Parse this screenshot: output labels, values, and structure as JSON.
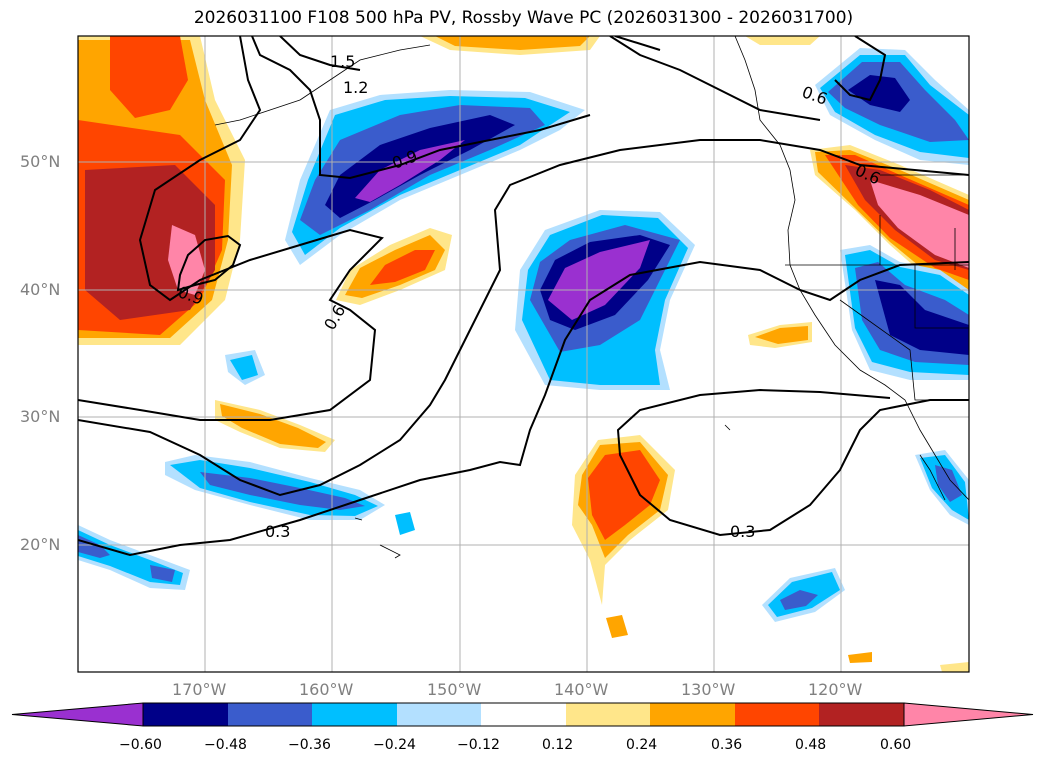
{
  "title": "2026031100 F108 500 hPa PV, Rossby Wave PC (2026031300 - 2026031700)",
  "map": {
    "lat_labels": [
      "50°N",
      "40°N",
      "30°N",
      "20°N"
    ],
    "lon_labels": [
      "170°W",
      "160°W",
      "150°W",
      "140°W",
      "130°W",
      "120°W"
    ],
    "contour_labels": [
      "1.5",
      "1.2",
      "0.9",
      "0.9",
      "0.6",
      "0.6",
      "0.6",
      "0.3",
      "0.3"
    ]
  },
  "colorbar": {
    "tick_labels": [
      "−0.60",
      "−0.48",
      "−0.36",
      "−0.24",
      "−0.12",
      "0.12",
      "0.24",
      "0.36",
      "0.48",
      "0.60"
    ],
    "colors": [
      "#9a30d0",
      "#000088",
      "#3a5ccc",
      "#00bfff",
      "#b3e0ff",
      "#ffffff",
      "#ffe68a",
      "#ffa500",
      "#ff4500",
      "#b22222",
      "#ff85a8"
    ]
  }
}
